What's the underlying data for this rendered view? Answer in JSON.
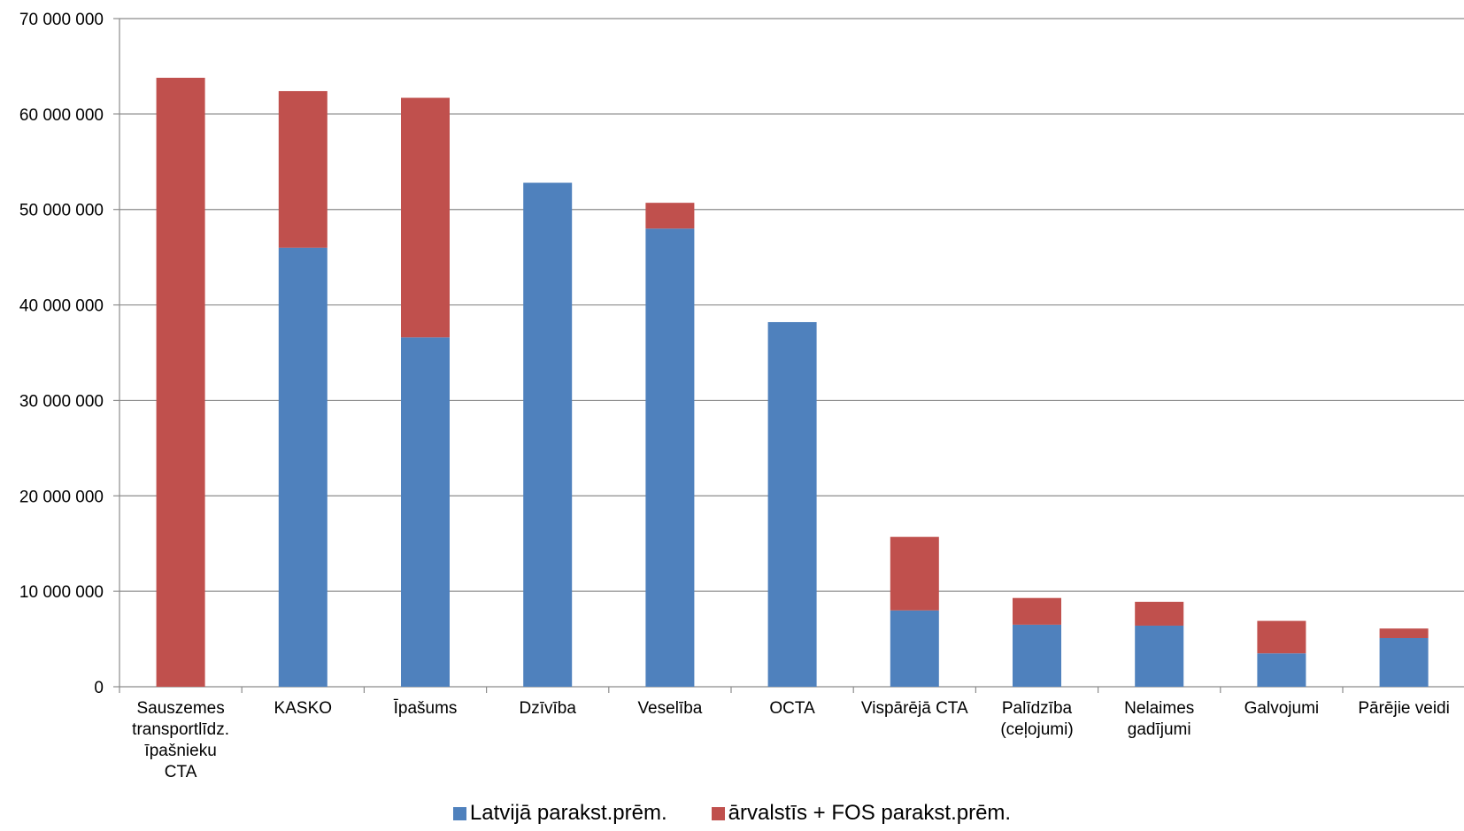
{
  "chart_data": {
    "type": "bar",
    "stacked": true,
    "categories": [
      "Sauszemes transportlīdz. īpašnieku CTA",
      "KASKO",
      "Īpašums",
      "Dzīvība",
      "Veselība",
      "OCTA",
      "Vispārējā CTA",
      "Palīdzība (ceļojumi)",
      "Nelaimes gadījumi",
      "Galvojumi",
      "Pārējie veidi"
    ],
    "category_lines": [
      [
        "Sauszemes",
        "transportlīdz.",
        "īpašnieku",
        "CTA"
      ],
      [
        "KASKO"
      ],
      [
        "Īpašums"
      ],
      [
        "Dzīvība"
      ],
      [
        "Veselība"
      ],
      [
        "OCTA"
      ],
      [
        "Vispārējā CTA"
      ],
      [
        "Palīdzība",
        "(ceļojumi)"
      ],
      [
        "Nelaimes",
        "gadījumi"
      ],
      [
        "Galvojumi"
      ],
      [
        "Pārējie veidi"
      ]
    ],
    "series": [
      {
        "name": "Latvijā parakst.prēm.",
        "color": "#4F81BD",
        "values": [
          0,
          46000000,
          36600000,
          52800000,
          48000000,
          38200000,
          8000000,
          6500000,
          6400000,
          3500000,
          5100000
        ]
      },
      {
        "name": "ārvalstīs + FOS parakst.prēm.",
        "color": "#C0504D",
        "values": [
          63800000,
          16400000,
          25100000,
          0,
          2700000,
          0,
          7700000,
          2800000,
          2500000,
          3400000,
          1000000
        ]
      }
    ],
    "ylim": [
      0,
      70000000
    ],
    "y_ticks": [
      0,
      10000000,
      20000000,
      30000000,
      40000000,
      50000000,
      60000000,
      70000000
    ],
    "y_tick_labels": [
      "0",
      "10 000 000",
      "20 000 000",
      "30 000 000",
      "40 000 000",
      "50 000 000",
      "60 000 000",
      "70 000 000"
    ],
    "grid": true,
    "legend_position": "bottom",
    "title": "",
    "xlabel": "",
    "ylabel": ""
  }
}
